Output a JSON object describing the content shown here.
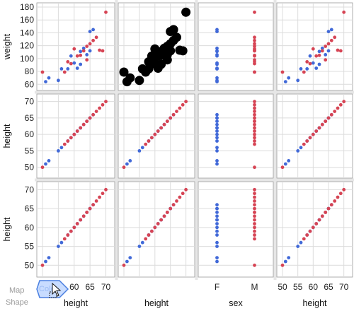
{
  "colors": {
    "female": "#4169d8",
    "male": "#d64454",
    "brushed": "#000000",
    "grid": "#dcdcdc",
    "separator": "#c9c9c9",
    "frame": "#9a9a9a",
    "drop_zone_fill": "#c8dcff",
    "drop_zone_stroke": "#4a7fe0"
  },
  "drop_zone": {
    "label_line1": "Map",
    "label_line2": "Shape",
    "partial_label": "Color"
  },
  "cursor": {
    "icon": "arrow-cursor-with-drag-box-icon"
  },
  "chart_data": {
    "type": "scatter",
    "subtype": "scatterplot-matrix",
    "rows": [
      {
        "variable": "weight",
        "label": "weight",
        "ylim": [
          57,
          180
        ],
        "ticks": [
          60,
          80,
          100,
          120,
          140,
          160,
          180
        ]
      },
      {
        "variable": "height",
        "label": "height",
        "ylim": [
          48,
          71
        ],
        "ticks": [
          50,
          55,
          60,
          65,
          70
        ]
      },
      {
        "variable": "height",
        "label": "height",
        "ylim": [
          48,
          71
        ],
        "ticks": [
          50,
          55,
          60,
          65,
          70
        ]
      }
    ],
    "columns": [
      {
        "variable": "height",
        "label": "height",
        "xlim": [
          50,
          71
        ],
        "ticks": [
          "50",
          "55",
          "60",
          "65",
          "70"
        ]
      },
      {
        "variable": "height",
        "label": "height",
        "xlim": [
          50,
          71
        ],
        "ticks": []
      },
      {
        "variable": "sex",
        "label": "sex",
        "categorical": true,
        "categories": [
          "F",
          "M"
        ],
        "ticks": [
          "F",
          "M"
        ]
      },
      {
        "variable": "height",
        "label": "height",
        "xlim": [
          50,
          71
        ],
        "ticks": [
          "50",
          "55",
          "60",
          "65",
          "70"
        ]
      }
    ],
    "grid": true,
    "brushed_cell": {
      "row": 0,
      "column": 1
    },
    "observations": [
      {
        "sex": "F",
        "height": 51,
        "weight": 64
      },
      {
        "sex": "F",
        "height": 52,
        "weight": 70
      },
      {
        "sex": "F",
        "height": 55,
        "weight": 66
      },
      {
        "sex": "F",
        "height": 56,
        "weight": 84
      },
      {
        "sex": "F",
        "height": 58,
        "weight": 84
      },
      {
        "sex": "F",
        "height": 59,
        "weight": 104
      },
      {
        "sex": "F",
        "height": 60,
        "weight": 93
      },
      {
        "sex": "F",
        "height": 61,
        "weight": 85
      },
      {
        "sex": "F",
        "height": 62,
        "weight": 91
      },
      {
        "sex": "F",
        "height": 62,
        "weight": 111
      },
      {
        "sex": "F",
        "height": 63,
        "weight": 116
      },
      {
        "sex": "F",
        "height": 64,
        "weight": 106
      },
      {
        "sex": "F",
        "height": 65,
        "weight": 112
      },
      {
        "sex": "F",
        "height": 65,
        "weight": 142
      },
      {
        "sex": "F",
        "height": 66,
        "weight": 145
      },
      {
        "sex": "M",
        "height": 50,
        "weight": 79
      },
      {
        "sex": "M",
        "height": 57,
        "weight": 79
      },
      {
        "sex": "M",
        "height": 58,
        "weight": 95
      },
      {
        "sex": "M",
        "height": 59,
        "weight": 92
      },
      {
        "sex": "M",
        "height": 60,
        "weight": 115
      },
      {
        "sex": "M",
        "height": 61,
        "weight": 104
      },
      {
        "sex": "M",
        "height": 62,
        "weight": 105
      },
      {
        "sex": "M",
        "height": 63,
        "weight": 112
      },
      {
        "sex": "M",
        "height": 64,
        "weight": 98
      },
      {
        "sex": "M",
        "height": 64,
        "weight": 119
      },
      {
        "sex": "M",
        "height": 65,
        "weight": 123
      },
      {
        "sex": "M",
        "height": 66,
        "weight": 128
      },
      {
        "sex": "M",
        "height": 67,
        "weight": 133
      },
      {
        "sex": "M",
        "height": 68,
        "weight": 113
      },
      {
        "sex": "M",
        "height": 69,
        "weight": 112
      },
      {
        "sex": "M",
        "height": 70,
        "weight": 172
      }
    ]
  }
}
